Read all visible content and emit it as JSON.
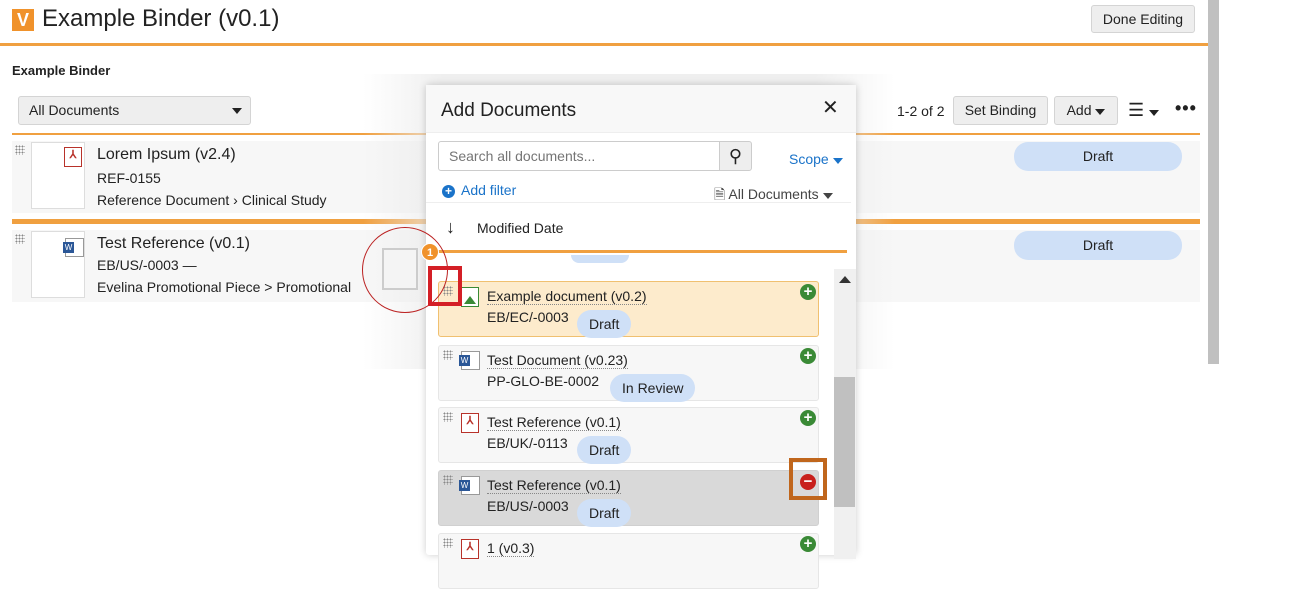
{
  "header": {
    "title": "Example Binder (v0.1)",
    "logo": "V",
    "done_editing": "Done Editing"
  },
  "binder": {
    "section_title": "Example Binder",
    "view_select": "All Documents",
    "pagination": "1-2 of 2",
    "set_binding": "Set Binding",
    "add": "Add",
    "rows": [
      {
        "name": "Lorem Ipsum (v2.4)",
        "number": "REF-0155",
        "type": "Reference Document › Clinical Study",
        "status": "Draft",
        "icon": "pdf-icon"
      },
      {
        "name": "Test Reference (v0.1)",
        "number": "EB/US/-0003 —",
        "type": "Evelina Promotional Piece > Promotional",
        "status": "Draft",
        "icon": "word-icon"
      }
    ]
  },
  "drag": {
    "badge": "1"
  },
  "modal": {
    "title": "Add Documents",
    "search_placeholder": "Search all documents...",
    "scope": "Scope",
    "add_filter": "Add filter",
    "doc_filter": "All Documents",
    "sort": "Modified Date",
    "items": [
      {
        "name": "Example document (v0.2)",
        "number": "EB/EC/-0003",
        "status": "Draft",
        "icon": "image-icon",
        "state": "highlighted"
      },
      {
        "name": "Test Document (v0.23)",
        "number": "PP-GLO-BE-0002",
        "status": "In Review",
        "icon": "word-icon"
      },
      {
        "name": "Test Reference (v0.1)",
        "number": "EB/UK/-0113",
        "status": "Draft",
        "icon": "pdf-icon"
      },
      {
        "name": "Test Reference (v0.1)",
        "number": "EB/US/-0003",
        "status": "Draft",
        "icon": "word-icon",
        "state": "added"
      },
      {
        "name": "1 (v0.3)",
        "icon": "pdf-icon"
      }
    ]
  },
  "colors": {
    "accent": "#f0a040",
    "pill": "#cfe0f7",
    "link": "#1a73c9",
    "add_green": "#3a8a36",
    "remove_red": "#c8201c",
    "highlight": "#fdebcc"
  }
}
